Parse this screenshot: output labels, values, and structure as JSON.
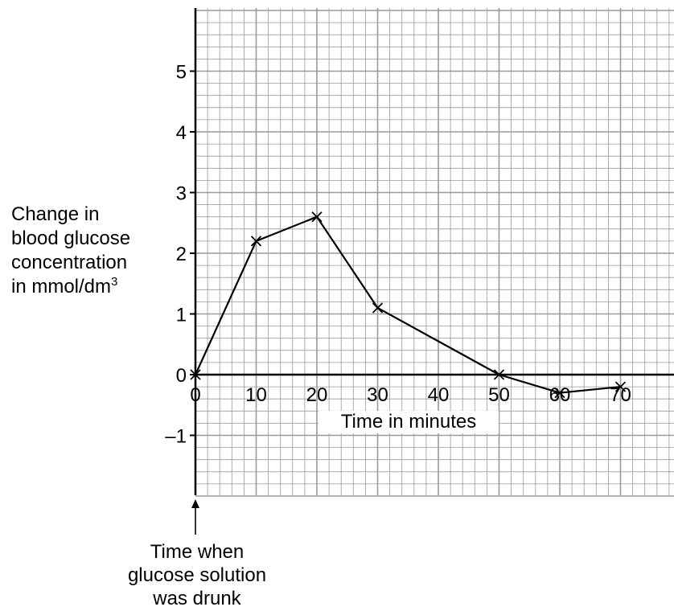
{
  "chart_data": {
    "type": "line",
    "x": [
      0,
      10,
      20,
      30,
      50,
      60,
      70
    ],
    "y": [
      0,
      2.2,
      2.6,
      1.1,
      0,
      -0.3,
      -0.2
    ],
    "xlabel": "Time in minutes",
    "ylabel_lines": [
      "Change in",
      "blood glucose",
      "concentration",
      "in mmol/dm"
    ],
    "ylabel_superscript": "3",
    "xlim": [
      0,
      80
    ],
    "ylim": [
      -2,
      6
    ],
    "x_ticks": [
      0,
      10,
      20,
      30,
      40,
      50,
      60,
      70
    ],
    "x_tick_labels": [
      "0",
      "10",
      "20",
      "30",
      "40",
      "50",
      "60",
      "70"
    ],
    "y_ticks": [
      -1,
      0,
      1,
      2,
      3,
      4,
      5
    ],
    "y_tick_labels": [
      "–1",
      "0",
      "1",
      "2",
      "3",
      "4",
      "5"
    ],
    "marker": "x",
    "grid": true,
    "grid_color": "#9a9a9a",
    "line_color": "#000000",
    "annotation_lines": [
      "Time when",
      "glucose solution",
      "was drunk"
    ]
  }
}
